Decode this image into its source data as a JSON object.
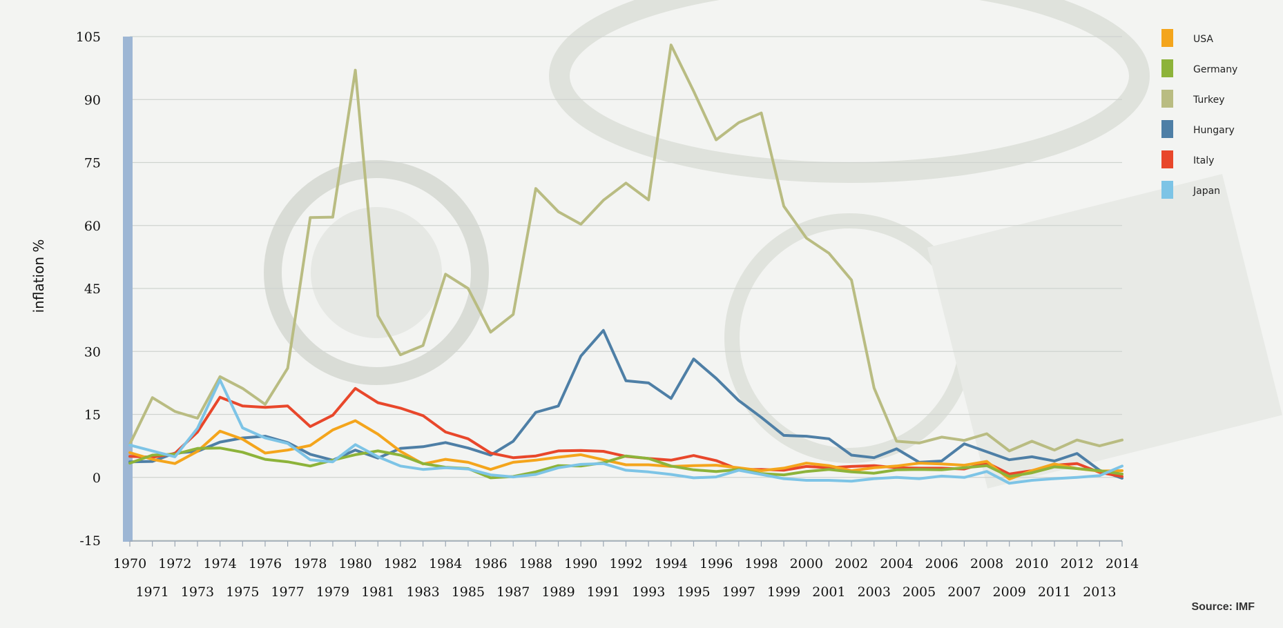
{
  "chart_data": {
    "type": "line",
    "title": "",
    "xlabel": "",
    "ylabel": "inflation %",
    "source": "Source: IMF",
    "ylim": [
      -15,
      105
    ],
    "y_ticks": [
      -15,
      0,
      15,
      30,
      45,
      60,
      75,
      90,
      105
    ],
    "grid": true,
    "legend_position": "top-right",
    "x": [
      1970,
      1971,
      1972,
      1973,
      1974,
      1975,
      1976,
      1977,
      1978,
      1979,
      1980,
      1981,
      1982,
      1983,
      1984,
      1985,
      1986,
      1987,
      1988,
      1989,
      1990,
      1991,
      1992,
      1993,
      1994,
      1995,
      1996,
      1997,
      1998,
      1999,
      2000,
      2001,
      2002,
      2003,
      2004,
      2005,
      2006,
      2007,
      2008,
      2009,
      2010,
      2011,
      2012,
      2013,
      2014
    ],
    "x_tick_labels": [
      "1970",
      "1971",
      "1972",
      "1973",
      "1974",
      "1975",
      "1976",
      "1977",
      "1978",
      "1979",
      "1980",
      "1981",
      "1982",
      "1983",
      "1984",
      "1985",
      "1986",
      "1987",
      "1988",
      "1989",
      "1990",
      "1991",
      "1992",
      "1993",
      "1994",
      "1995",
      "1996",
      "1997",
      "1998",
      "1999",
      "2000",
      "2001",
      "2002",
      "2003",
      "2004",
      "2005",
      "2006",
      "2007",
      "2008",
      "2009",
      "2010",
      "2011",
      "2012",
      "2013",
      "2014"
    ],
    "series": [
      {
        "name": "USA",
        "color": "#f4a51c",
        "values": [
          5.9,
          4.3,
          3.3,
          6.2,
          11.0,
          9.1,
          5.8,
          6.5,
          7.6,
          11.3,
          13.5,
          10.3,
          6.2,
          3.2,
          4.3,
          3.6,
          1.9,
          3.6,
          4.1,
          4.8,
          5.4,
          4.2,
          3.0,
          3.0,
          2.6,
          2.8,
          2.9,
          2.3,
          1.6,
          2.2,
          3.4,
          2.8,
          1.6,
          2.3,
          2.7,
          3.4,
          3.2,
          2.9,
          3.8,
          -0.4,
          1.6,
          3.2,
          2.1,
          1.5,
          1.6
        ]
      },
      {
        "name": "Germany",
        "color": "#8db33a",
        "values": [
          3.4,
          5.3,
          5.5,
          6.9,
          7.0,
          6.0,
          4.3,
          3.7,
          2.7,
          4.1,
          5.4,
          6.3,
          5.3,
          3.3,
          2.4,
          2.1,
          -0.1,
          0.2,
          1.3,
          2.8,
          2.7,
          3.5,
          5.1,
          4.5,
          2.7,
          1.8,
          1.4,
          1.9,
          0.9,
          0.6,
          1.4,
          1.9,
          1.3,
          1.0,
          1.8,
          1.9,
          1.8,
          2.3,
          2.8,
          0.2,
          1.1,
          2.5,
          2.1,
          1.6,
          0.8
        ]
      },
      {
        "name": "Turkey",
        "color": "#b9bc82",
        "values": [
          7.9,
          19.0,
          15.7,
          14.1,
          24.0,
          21.2,
          17.4,
          26.0,
          61.9,
          62.0,
          97.0,
          38.5,
          29.2,
          31.4,
          48.4,
          45.0,
          34.6,
          38.8,
          68.8,
          63.3,
          60.3,
          66.0,
          70.1,
          66.1,
          103.0,
          92.0,
          80.4,
          84.5,
          86.8,
          64.6,
          57.0,
          53.4,
          47.0,
          21.3,
          8.6,
          8.2,
          9.6,
          8.8,
          10.4,
          6.3,
          8.6,
          6.5,
          8.9,
          7.5,
          8.9
        ]
      },
      {
        "name": "Hungary",
        "color": "#4e7fa6",
        "values": [
          3.7,
          3.8,
          5.8,
          6.2,
          8.4,
          9.4,
          9.8,
          8.3,
          5.5,
          4.1,
          6.5,
          4.6,
          6.9,
          7.3,
          8.3,
          7.0,
          5.3,
          8.6,
          15.5,
          17.0,
          28.9,
          35.0,
          23.0,
          22.5,
          18.8,
          28.2,
          23.6,
          18.3,
          14.3,
          10.0,
          9.8,
          9.2,
          5.3,
          4.7,
          6.8,
          3.6,
          3.9,
          8.0,
          6.1,
          4.2,
          4.9,
          3.9,
          5.7,
          1.7,
          -0.2
        ]
      },
      {
        "name": "Italy",
        "color": "#e8472b",
        "values": [
          5.0,
          4.8,
          5.7,
          10.8,
          19.1,
          17.0,
          16.7,
          17.0,
          12.1,
          14.8,
          21.2,
          17.8,
          16.5,
          14.7,
          10.8,
          9.2,
          5.8,
          4.7,
          5.1,
          6.3,
          6.4,
          6.2,
          5.0,
          4.5,
          4.1,
          5.2,
          4.0,
          1.9,
          1.9,
          1.7,
          2.6,
          2.3,
          2.6,
          2.8,
          2.3,
          2.2,
          2.2,
          2.0,
          3.5,
          0.8,
          1.6,
          2.9,
          3.3,
          1.2,
          0.2
        ]
      },
      {
        "name": "Japan",
        "color": "#7dc4e6",
        "values": [
          7.7,
          6.3,
          4.9,
          11.7,
          23.2,
          11.8,
          9.4,
          8.1,
          4.2,
          3.7,
          7.8,
          4.9,
          2.7,
          1.9,
          2.3,
          2.0,
          0.6,
          0.1,
          0.7,
          2.3,
          3.1,
          3.3,
          1.7,
          1.3,
          0.7,
          -0.1,
          0.1,
          1.7,
          0.7,
          -0.3,
          -0.7,
          -0.7,
          -0.9,
          -0.3,
          0.0,
          -0.3,
          0.3,
          0.0,
          1.4,
          -1.4,
          -0.7,
          -0.3,
          0.0,
          0.4,
          2.7
        ]
      }
    ]
  }
}
